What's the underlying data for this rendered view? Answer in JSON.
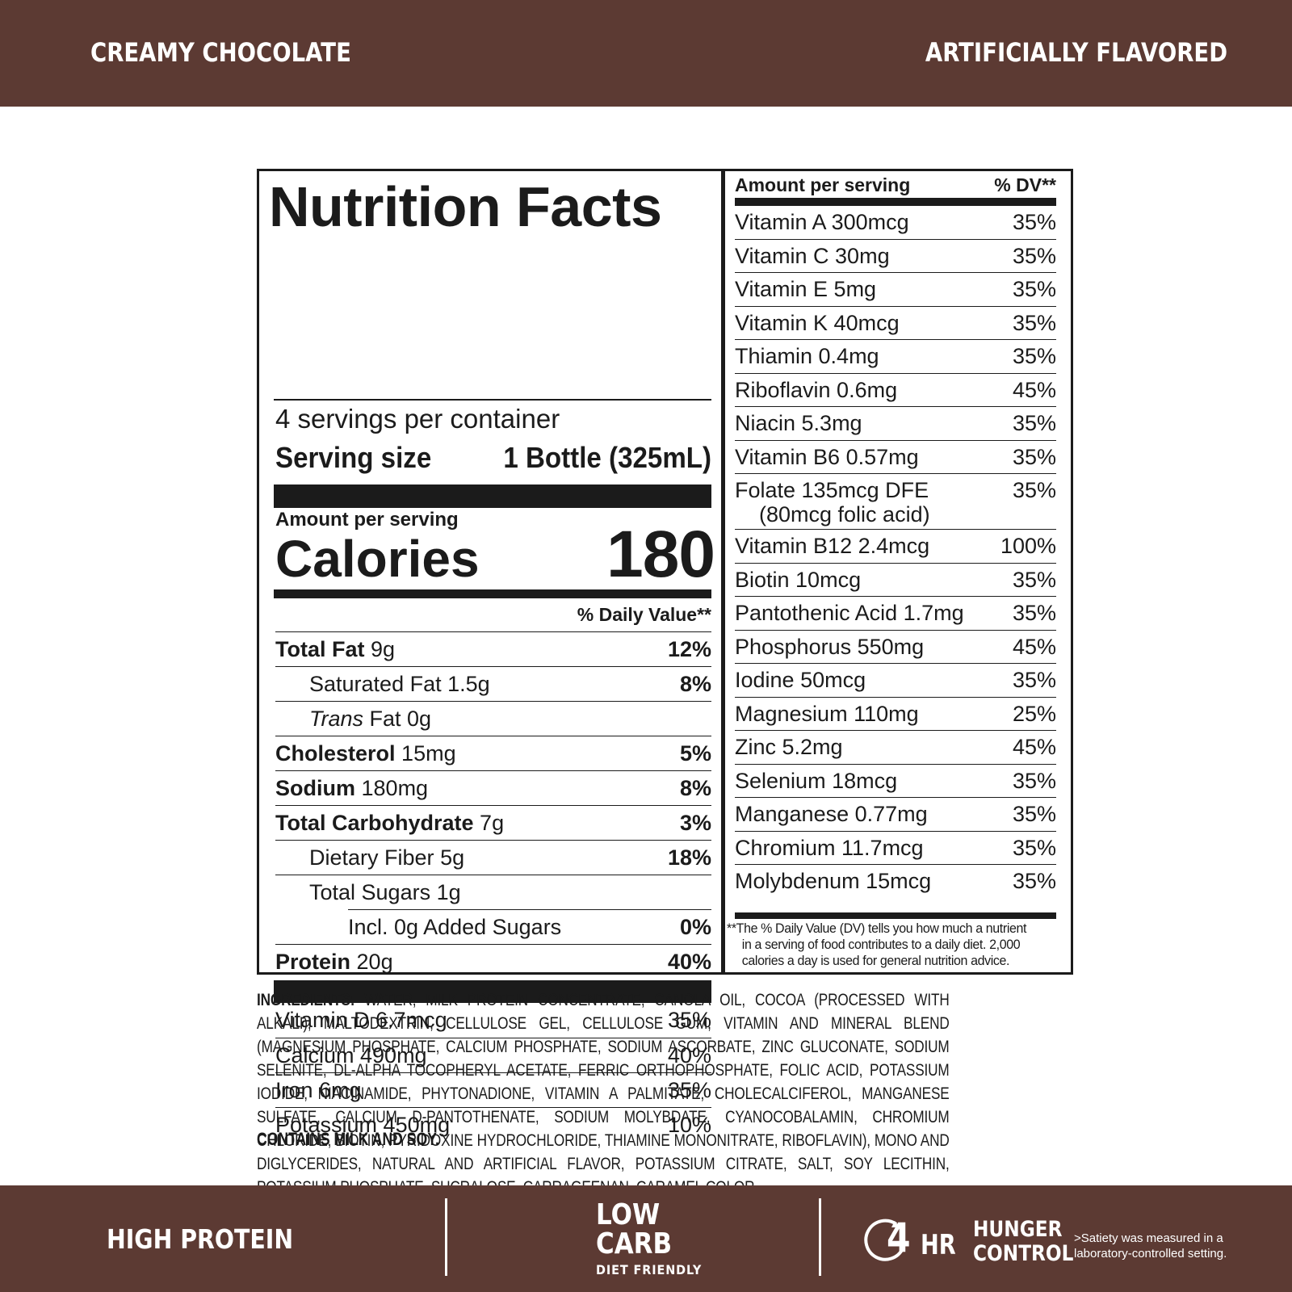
{
  "header": {
    "flavor": "CREAMY CHOCOLATE",
    "flavor_note": "ARTIFICIALLY FLAVORED",
    "band_color": "#5c3a33"
  },
  "facts": {
    "title": "Nutrition Facts",
    "servings": "4 servings per container",
    "serving_size_label": "Serving size",
    "serving_size_value": "1 Bottle (325mL)",
    "amount_per_serving": "Amount per serving",
    "calories_label": "Calories",
    "calories_value": "180",
    "dv_header": "% Daily Value**",
    "nutrients": [
      {
        "name": "Total Fat",
        "amount": "9g",
        "dv": "12%"
      },
      {
        "name": "Saturated Fat",
        "amount": "1.5g",
        "dv": "8%"
      },
      {
        "name": "Trans",
        "amount": "Fat 0g",
        "dv": ""
      },
      {
        "name": "Cholesterol",
        "amount": "15mg",
        "dv": "5%"
      },
      {
        "name": "Sodium",
        "amount": "180mg",
        "dv": "8%"
      },
      {
        "name": "Total Carbohydrate",
        "amount": "7g",
        "dv": "3%"
      },
      {
        "name": "Dietary Fiber",
        "amount": "5g",
        "dv": "18%"
      },
      {
        "name": "Total Sugars",
        "amount": "1g",
        "dv": ""
      },
      {
        "name": "Incl. 0g Added Sugars",
        "amount": "",
        "dv": "0%"
      },
      {
        "name": "Protein",
        "amount": "20g",
        "dv": "40%"
      }
    ],
    "minerals_left": [
      {
        "name": "Vitamin D 6.7mcg",
        "dv": "35%"
      },
      {
        "name": "Calcium 490mg",
        "dv": "40%"
      },
      {
        "name": "Iron 6mg",
        "dv": "35%"
      },
      {
        "name": "Potassium 450mg",
        "dv": "10%"
      }
    ],
    "right_header_left": "Amount per serving",
    "right_header_right": "% DV**",
    "vitamins": [
      {
        "name": "Vitamin A 300mcg",
        "dv": "35%"
      },
      {
        "name": "Vitamin C 30mg",
        "dv": "35%"
      },
      {
        "name": "Vitamin E 5mg",
        "dv": "35%"
      },
      {
        "name": "Vitamin K 40mcg",
        "dv": "35%"
      },
      {
        "name": "Thiamin 0.4mg",
        "dv": "35%"
      },
      {
        "name": "Riboflavin 0.6mg",
        "dv": "45%"
      },
      {
        "name": "Niacin 5.3mg",
        "dv": "35%"
      },
      {
        "name": "Vitamin B6 0.57mg",
        "dv": "35%"
      },
      {
        "name": "Folate 135mcg DFE",
        "sub": "(80mcg folic acid)",
        "dv": "35%"
      },
      {
        "name": "Vitamin B12 2.4mcg",
        "dv": "100%"
      },
      {
        "name": "Biotin 10mcg",
        "dv": "35%"
      },
      {
        "name": "Pantothenic Acid 1.7mg",
        "dv": "35%"
      },
      {
        "name": "Phosphorus 550mg",
        "dv": "45%"
      },
      {
        "name": "Iodine 50mcg",
        "dv": "35%"
      },
      {
        "name": "Magnesium 110mg",
        "dv": "25%"
      },
      {
        "name": "Zinc 5.2mg",
        "dv": "45%"
      },
      {
        "name": "Selenium 18mcg",
        "dv": "35%"
      },
      {
        "name": "Manganese 0.77mg",
        "dv": "35%"
      },
      {
        "name": "Chromium 11.7mcg",
        "dv": "35%"
      },
      {
        "name": "Molybdenum 15mcg",
        "dv": "35%"
      }
    ],
    "footnote_line1": "**The % Daily Value (DV) tells you how much a nutrient",
    "footnote_line2": "in a serving of food contributes to a daily diet. 2,000",
    "footnote_line3": "calories a day is used for general nutrition advice."
  },
  "ingredients": {
    "label": "INGREDIENTS:",
    "text": "WATER, MILK PROTEIN CONCENTRATE, CANOLA OIL, COCOA (PROCESSED WITH ALKALI), MALTODEXTRIN, CELLULOSE GEL, CELLULOSE GUM, VITAMIN AND MINERAL BLEND (MAGNESIUM PHOSPHATE, CALCIUM PHOSPHATE, SODIUM ASCORBATE, ZINC GLUCONATE, SODIUM SELENITE, DL-ALPHA TOCOPHERYL ACETATE, FERRIC ORTHOPHOSPHATE, FOLIC ACID, POTASSIUM IODIDE, NIACINAMIDE, PHYTONADIONE, VITAMIN A PALMITATE, CHOLECALCIFEROL, MANGANESE SULFATE, CALCIUM D-PANTOTHENATE, SODIUM MOLYBDATE, CYANOCOBALAMIN, CHROMIUM CHLORIDE, BIOTIN, PYRIDOXINE HYDROCHLORIDE, THIAMINE MONONITRATE, RIBOFLAVIN), MONO AND DIGLYCERIDES, NATURAL AND ARTIFICIAL FLAVOR, POTASSIUM CITRATE, SALT, SOY LECITHIN, POTASSIUM PHOSPHATE, SUCRALOSE, CARRAGEENAN, CARAMEL COLOR.",
    "contains": "CONTAINS MILK AND SOY."
  },
  "footer": {
    "high_protein": "HIGH PROTEIN",
    "low": "LOW",
    "carb": "CARB",
    "diet_friendly": "DIET FRIENDLY",
    "four": "4",
    "hr": "HR",
    "hunger": "HUNGER",
    "control": "CONTROL",
    "satiety_line1": ">Satiety was measured in a",
    "satiety_line2": "laboratory-controlled setting.",
    "clock_icon": "clock-icon"
  }
}
